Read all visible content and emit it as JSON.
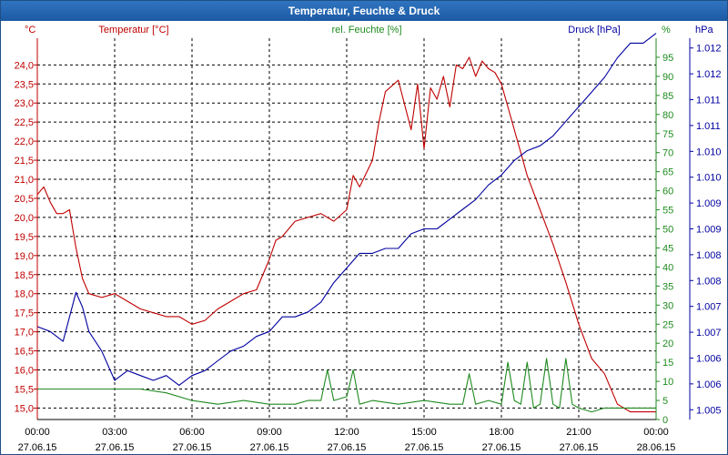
{
  "window": {
    "title": "Temperatur, Feuchte & Druck"
  },
  "colors": {
    "temperature": "#c00000",
    "humidity": "#1f8a1f",
    "pressure": "#0000a0",
    "grid": "#000000"
  },
  "chart_data": {
    "type": "line",
    "title": "Temperatur, Feuchte & Druck",
    "xlabel": "",
    "grid": true,
    "x_ticks": [
      {
        "time": "00:00",
        "date": "27.06.15"
      },
      {
        "time": "03:00",
        "date": "27.06.15"
      },
      {
        "time": "06:00",
        "date": "27.06.15"
      },
      {
        "time": "09:00",
        "date": "27.06.15"
      },
      {
        "time": "12:00",
        "date": "27.06.15"
      },
      {
        "time": "15:00",
        "date": "27.06.15"
      },
      {
        "time": "18:00",
        "date": "27.06.15"
      },
      {
        "time": "21:00",
        "date": "27.06.15"
      },
      {
        "time": "00:00",
        "date": "28.06.15"
      }
    ],
    "xlim_hours": [
      0,
      24
    ],
    "axes": {
      "temperature": {
        "legend": "Temperatur [°C]",
        "unit": "°C",
        "ylim": [
          14.7,
          24.7
        ],
        "ticks": [
          "15,0",
          "15,5",
          "16,0",
          "16,5",
          "17,0",
          "17,5",
          "18,0",
          "18,5",
          "19,0",
          "19,5",
          "20,0",
          "20,5",
          "21,0",
          "21,5",
          "22,0",
          "22,5",
          "23,0",
          "23,5",
          "24,0"
        ]
      },
      "humidity": {
        "legend": "rel. Feuchte [%]",
        "unit": "%",
        "ylim": [
          0,
          100
        ],
        "ticks": [
          "0",
          "5",
          "10",
          "15",
          "20",
          "25",
          "30",
          "35",
          "40",
          "45",
          "50",
          "55",
          "60",
          "65",
          "70",
          "75",
          "80",
          "85",
          "90",
          "95"
        ]
      },
      "pressure": {
        "legend": "Druck [hPa]",
        "unit": "hPa",
        "ylim": [
          1.0048,
          1.0126
        ],
        "ticks": [
          "1.005",
          "1.006",
          "1.006",
          "1.007",
          "1.007",
          "1.008",
          "1.008",
          "1.009",
          "1.009",
          "1.010",
          "1.010",
          "1.011",
          "1.011",
          "1.012",
          "1.012"
        ]
      }
    },
    "series": [
      {
        "name": "Temperatur [°C]",
        "axis": "temperature",
        "x": [
          0,
          0.25,
          0.5,
          0.75,
          1.0,
          1.25,
          1.5,
          1.75,
          2.0,
          2.5,
          3.0,
          3.5,
          4.0,
          4.5,
          5.0,
          5.5,
          6.0,
          6.5,
          7.0,
          7.5,
          8.0,
          8.5,
          9.0,
          9.25,
          9.5,
          10.0,
          10.5,
          11.0,
          11.5,
          12.0,
          12.25,
          12.5,
          13.0,
          13.25,
          13.5,
          14.0,
          14.5,
          14.75,
          15.0,
          15.25,
          15.5,
          15.75,
          16.0,
          16.25,
          16.5,
          16.75,
          17.0,
          17.25,
          17.5,
          17.75,
          18.0,
          18.25,
          18.5,
          18.75,
          19.0,
          19.5,
          20.0,
          20.5,
          21.0,
          21.5,
          22.0,
          22.5,
          23.0,
          23.5,
          24.0
        ],
        "values": [
          20.6,
          20.8,
          20.4,
          20.1,
          20.1,
          20.2,
          19.2,
          18.4,
          18.0,
          17.9,
          18.0,
          17.8,
          17.6,
          17.5,
          17.4,
          17.4,
          17.2,
          17.3,
          17.6,
          17.8,
          18.0,
          18.1,
          18.9,
          19.4,
          19.5,
          19.9,
          20.0,
          20.1,
          19.9,
          20.2,
          21.1,
          20.8,
          21.5,
          22.5,
          23.3,
          23.6,
          22.3,
          23.5,
          21.8,
          23.4,
          23.1,
          23.7,
          22.9,
          24.0,
          23.9,
          24.2,
          23.7,
          24.1,
          23.9,
          23.8,
          23.5,
          22.9,
          22.3,
          21.7,
          21.1,
          20.2,
          19.3,
          18.3,
          17.2,
          16.3,
          15.9,
          15.1,
          14.9,
          14.9,
          14.9
        ]
      },
      {
        "name": "rel. Feuchte [%]",
        "axis": "humidity",
        "x": [
          0,
          1,
          2,
          3,
          4,
          5,
          6,
          7,
          8,
          9,
          10,
          10.5,
          11.0,
          11.25,
          11.5,
          12.0,
          12.25,
          12.5,
          13,
          14,
          15,
          16,
          16.5,
          16.75,
          17.0,
          17.5,
          18.0,
          18.25,
          18.5,
          18.75,
          19.0,
          19.25,
          19.5,
          19.75,
          20.0,
          20.25,
          20.5,
          20.75,
          21.0,
          21.5,
          22.0,
          23.0,
          24.0
        ],
        "values": [
          8,
          8,
          8,
          8,
          8,
          7,
          5,
          4,
          5,
          4,
          4,
          5,
          5,
          13,
          5,
          6,
          13,
          4,
          5,
          4,
          5,
          4,
          4,
          12,
          4,
          5,
          4,
          15,
          5,
          4,
          15,
          3,
          4,
          16,
          4,
          3,
          16,
          4,
          3,
          2,
          3,
          3,
          3
        ]
      },
      {
        "name": "Druck [hPa]",
        "axis": "pressure",
        "x": [
          0,
          0.5,
          1.0,
          1.5,
          1.75,
          2.0,
          2.5,
          3.0,
          3.5,
          4.0,
          4.5,
          5.0,
          5.5,
          6.0,
          6.5,
          7.0,
          7.5,
          8.0,
          8.5,
          9.0,
          9.5,
          10.0,
          10.5,
          11.0,
          11.5,
          12.0,
          12.5,
          13.0,
          13.5,
          14.0,
          14.5,
          15.0,
          15.5,
          16.0,
          16.5,
          17.0,
          17.5,
          18.0,
          18.5,
          19.0,
          19.5,
          20.0,
          20.5,
          21.0,
          21.5,
          22.0,
          22.5,
          23.0,
          23.5,
          24.0
        ],
        "values": [
          1.0067,
          1.0066,
          1.0064,
          1.0074,
          1.0071,
          1.0066,
          1.0062,
          1.0056,
          1.0058,
          1.0057,
          1.0056,
          1.0057,
          1.0055,
          1.0057,
          1.0058,
          1.006,
          1.0062,
          1.0063,
          1.0065,
          1.0066,
          1.0069,
          1.0069,
          1.007,
          1.0072,
          1.0076,
          1.0079,
          1.0082,
          1.0082,
          1.0083,
          1.0083,
          1.0086,
          1.0087,
          1.0087,
          1.0089,
          1.0091,
          1.0093,
          1.0096,
          1.0098,
          1.0101,
          1.0103,
          1.0104,
          1.0106,
          1.0109,
          1.0112,
          1.0115,
          1.0118,
          1.0122,
          1.0125,
          1.0125,
          1.0127
        ]
      }
    ]
  }
}
